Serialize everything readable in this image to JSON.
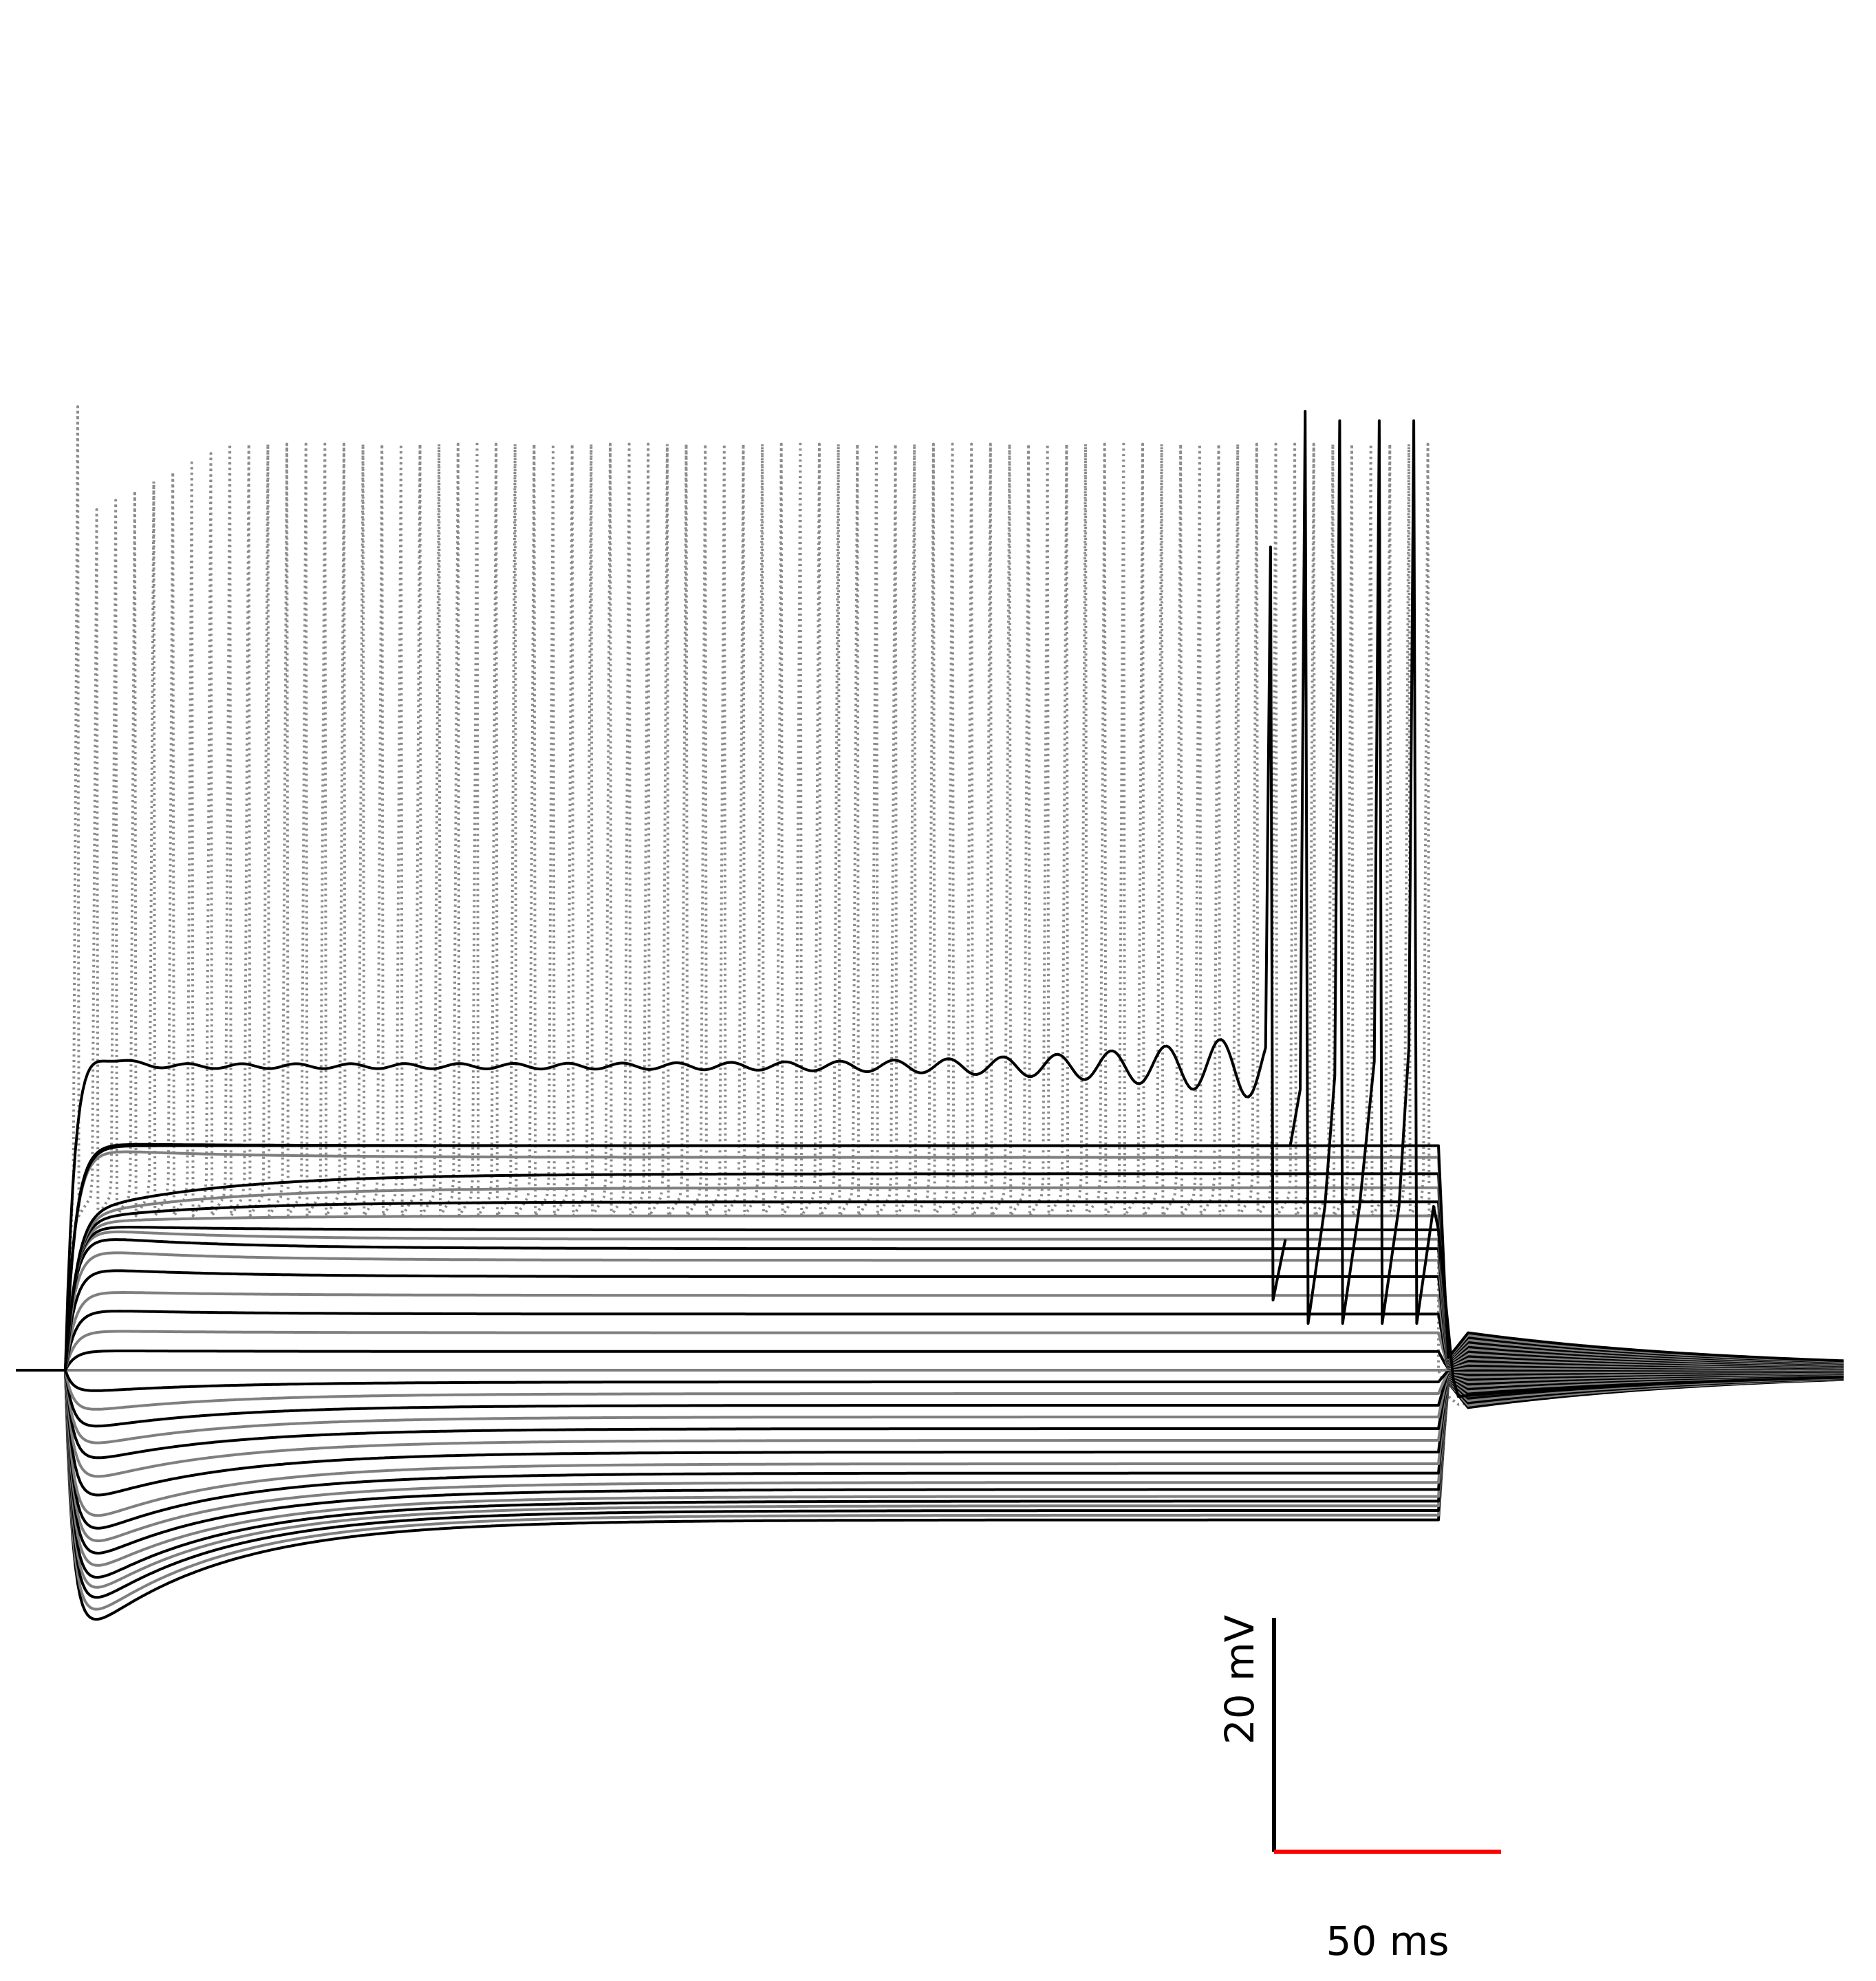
{
  "chart_data": {
    "type": "line",
    "title": "",
    "xlabel": "",
    "ylabel": "",
    "x_units": "ms",
    "y_units": "mV",
    "xlim": [
      -10,
      370
    ],
    "ylim": [
      -70,
      80
    ],
    "grid": false,
    "legend": "none",
    "baseline_mV": 0,
    "stimulus": {
      "onset_ms": 0,
      "offset_ms": 278,
      "end_ms": 360
    },
    "traces": {
      "subthreshold_steady_mV": [
        -32,
        -31,
        -30,
        -29,
        -28,
        -27,
        -25.5,
        -24,
        -22,
        -20,
        -17.5,
        -15,
        -12.5,
        -10,
        -7.5,
        -5,
        -2.5,
        0,
        4,
        8,
        12,
        16,
        20,
        23.5,
        26,
        28,
        30,
        33,
        36,
        39,
        42,
        45.5,
        48
      ],
      "subthreshold_peak_mV": [
        -60.5,
        -58,
        -55,
        -52.5,
        -50,
        -47,
        -44,
        -41,
        -38,
        -35,
        -30,
        -25.5,
        -21,
        -17.5,
        -13.5,
        -9.5,
        -5,
        0,
        4.2,
        8.5,
        13,
        17,
        22,
        26,
        29,
        30.5,
        31,
        31.5,
        32,
        32.5,
        33,
        47.5,
        48.5
      ],
      "undershoot_mV": [
        -8,
        -7.5,
        -7,
        -6.5,
        -6,
        -5.5,
        -5,
        -4.5,
        -4,
        -3.5,
        -3,
        -2.5,
        -2,
        -1.5,
        -1,
        -0.5,
        0,
        0.5,
        1,
        1.5,
        2,
        2.5,
        3,
        3.5,
        4,
        4.5,
        5,
        5.5,
        6,
        6.5,
        7,
        7.5,
        8
      ],
      "oscillation_trace": {
        "plateau_mV": 65,
        "spike_time_ms": 244,
        "spike_peak_mV": 176
      },
      "spiking_train": {
        "spike_times_ms": [
          251,
          258,
          266,
          273
        ],
        "peak_mV": 205,
        "trough_mV": 15
      },
      "dotted_tonic_train": {
        "first_spike_ms": 2.5,
        "isi_ms": 3.85,
        "spike_count": 72,
        "peak_mV": 198,
        "trough_mV": 33
      }
    }
  },
  "scale_bar": {
    "vertical_value_mV": 20,
    "vertical_label": "20 mV",
    "horizontal_value_ms": 50,
    "horizontal_label": "50 ms",
    "horizontal_color": "#ff0000",
    "vertical_color": "#000000"
  },
  "colors": {
    "trace_dark": "#000000",
    "trace_light": "#7f7f7f",
    "dotted": "#8c8c8c"
  }
}
